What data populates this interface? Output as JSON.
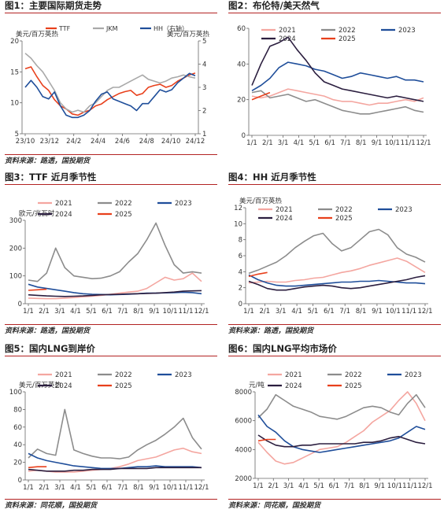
{
  "figures": [
    {
      "title": "图1：主要国际期货走势",
      "source": "资料来源：路透，国投期货",
      "unit_left": "美元/百万英热",
      "unit_right": "美元/百万英热",
      "chart_data": {
        "type": "line",
        "x_ticks": [
          "23/10",
          "23/12",
          "24/2",
          "24/4",
          "24/6",
          "24/8",
          "24/10",
          "24/12"
        ],
        "ylim": [
          5,
          20
        ],
        "y_ticks": [
          5,
          10,
          15,
          20
        ],
        "y2lim": [
          1,
          5
        ],
        "y2_ticks": [
          1,
          2,
          3,
          4,
          5
        ],
        "legend_placement": "top",
        "series": [
          {
            "name": "TTF",
            "color": "#e8401c",
            "axis": "left",
            "values": [
              15.5,
              15.8,
              14.2,
              12.8,
              12.0,
              10.5,
              9.5,
              9.0,
              8.2,
              8.0,
              8.5,
              8.8,
              9.5,
              9.8,
              10.5,
              11.0,
              11.5,
              11.8,
              12.0,
              11.2,
              11.5,
              12.5,
              12.8,
              13.0,
              12.5,
              12.8,
              13.5,
              14.0,
              14.5,
              14.8
            ]
          },
          {
            "name": "JKM",
            "color": "#a9a9a9",
            "axis": "left",
            "values": [
              18.0,
              17.2,
              16.0,
              15.0,
              13.5,
              12.0,
              10.0,
              9.0,
              8.5,
              8.8,
              8.5,
              9.5,
              10.0,
              11.0,
              12.0,
              12.5,
              12.5,
              13.0,
              13.5,
              14.0,
              14.5,
              13.8,
              13.5,
              13.2,
              13.5,
              14.0,
              14.2,
              14.5,
              14.2,
              14.0
            ]
          },
          {
            "name": "HH（右轴）",
            "color": "#1f4e9a",
            "axis": "right",
            "values": [
              3.0,
              3.3,
              3.0,
              2.6,
              2.5,
              2.8,
              2.2,
              1.8,
              1.7,
              1.7,
              1.8,
              2.0,
              2.4,
              2.7,
              2.8,
              2.5,
              2.4,
              2.3,
              2.2,
              2.0,
              2.3,
              2.3,
              2.6,
              2.9,
              2.8,
              2.9,
              3.2,
              3.4,
              3.6,
              3.5
            ]
          }
        ]
      }
    },
    {
      "title": "图2：布伦特/美天然气",
      "source": "",
      "chart_data": {
        "type": "line",
        "x_ticks": [
          "1/1",
          "2/1",
          "3/1",
          "4/1",
          "5/1",
          "6/1",
          "7/1",
          "8/1",
          "9/1",
          "10/1",
          "11/1",
          "12/1"
        ],
        "ylim": [
          0,
          60
        ],
        "y_ticks": [
          0,
          20,
          40,
          60
        ],
        "legend_placement": "top",
        "series": [
          {
            "name": "2021",
            "color": "#f4a6a0",
            "values": [
              22,
              21,
              22,
              24,
              26,
              25,
              24,
              23,
              22,
              20,
              19,
              19,
              18,
              17,
              18,
              18,
              19,
              20,
              19,
              21
            ]
          },
          {
            "name": "2022",
            "color": "#8c8c8c",
            "values": [
              24,
              25,
              21,
              22,
              23,
              21,
              19,
              20,
              18,
              16,
              14,
              13,
              12,
              12,
              13,
              14,
              15,
              16,
              14,
              13
            ]
          },
          {
            "name": "2023",
            "color": "#1f4e9a",
            "values": [
              25,
              28,
              32,
              38,
              41,
              40,
              39,
              37,
              36,
              34,
              32,
              33,
              35,
              34,
              33,
              32,
              33,
              31,
              31,
              30
            ]
          },
          {
            "name": "2024",
            "color": "#2b1e3f",
            "values": [
              28,
              40,
              50,
              52,
              55,
              48,
              42,
              35,
              30,
              28,
              26,
              25,
              24,
              23,
              22,
              21,
              22,
              21,
              20,
              19
            ]
          },
          {
            "name": "2025",
            "color": "#e8401c",
            "values": [
              20,
              22,
              24
            ]
          }
        ]
      }
    },
    {
      "title": "图3：TTF 近月季节性",
      "source": "资料来源：路透，国投期货",
      "unit_left": "欧元/兆瓦时",
      "chart_data": {
        "type": "line",
        "x_ticks": [
          "1/1",
          "2/1",
          "3/1",
          "4/1",
          "5/1",
          "6/1",
          "7/1",
          "8/1",
          "9/1",
          "10/1",
          "11/1",
          "12/1"
        ],
        "ylim": [
          0,
          300
        ],
        "y_ticks": [
          0,
          100,
          200,
          300
        ],
        "legend_placement": "top",
        "series": [
          {
            "name": "2021",
            "color": "#f4a6a0",
            "values": [
              20,
              19,
              18,
              18,
              20,
              22,
              25,
              27,
              30,
              34,
              38,
              42,
              45,
              55,
              75,
              95,
              85,
              90,
              110,
              80
            ]
          },
          {
            "name": "2022",
            "color": "#8c8c8c",
            "values": [
              85,
              80,
              110,
              200,
              130,
              100,
              95,
              90,
              92,
              100,
              115,
              150,
              180,
              230,
              290,
              210,
              140,
              110,
              115,
              110
            ]
          },
          {
            "name": "2023",
            "color": "#1f4e9a",
            "values": [
              70,
              60,
              55,
              50,
              45,
              40,
              36,
              34,
              33,
              32,
              33,
              34,
              36,
              38,
              38,
              39,
              40,
              41,
              40,
              36
            ]
          },
          {
            "name": "2024",
            "color": "#2b1e3f",
            "values": [
              32,
              30,
              28,
              27,
              26,
              27,
              28,
              30,
              32,
              33,
              34,
              35,
              36,
              37,
              38,
              40,
              42,
              45,
              46,
              47
            ]
          },
          {
            "name": "2025",
            "color": "#e8401c",
            "values": [
              48,
              50,
              52
            ]
          }
        ]
      }
    },
    {
      "title": "图4：HH 近月季节性",
      "source": "资料来源：路透，国投期货",
      "unit_left": "美元/百万英热",
      "chart_data": {
        "type": "line",
        "x_ticks": [
          "1/1",
          "2/1",
          "3/1",
          "4/1",
          "5/1",
          "6/1",
          "7/1",
          "8/1",
          "9/1",
          "10/1",
          "11/1",
          "12/1"
        ],
        "ylim": [
          0,
          12
        ],
        "y_ticks": [
          0,
          2,
          4,
          6,
          8,
          10,
          12
        ],
        "legend_placement": "top",
        "series": [
          {
            "name": "2021",
            "color": "#f4a6a0",
            "values": [
              2.6,
              2.7,
              2.8,
              2.7,
              2.7,
              2.9,
              3.0,
              3.2,
              3.3,
              3.6,
              3.9,
              4.1,
              4.4,
              4.8,
              5.1,
              5.4,
              5.7,
              5.3,
              4.6,
              3.9
            ]
          },
          {
            "name": "2022",
            "color": "#8c8c8c",
            "values": [
              3.8,
              4.2,
              4.7,
              5.2,
              6.0,
              7.0,
              7.8,
              8.5,
              8.8,
              7.5,
              6.6,
              7.0,
              8.0,
              9.0,
              9.3,
              8.6,
              7.0,
              6.2,
              5.8,
              5.2
            ]
          },
          {
            "name": "2023",
            "color": "#1f4e9a",
            "values": [
              3.6,
              3.0,
              2.6,
              2.3,
              2.2,
              2.2,
              2.3,
              2.4,
              2.5,
              2.6,
              2.7,
              2.7,
              2.8,
              2.8,
              2.9,
              2.8,
              2.7,
              2.6,
              2.6,
              2.5
            ]
          },
          {
            "name": "2024",
            "color": "#2b1e3f",
            "values": [
              2.8,
              2.4,
              1.9,
              1.7,
              1.7,
              1.9,
              2.1,
              2.2,
              2.3,
              2.2,
              2.0,
              1.9,
              2.0,
              2.2,
              2.4,
              2.6,
              2.8,
              3.0,
              3.3,
              3.5
            ]
          },
          {
            "name": "2025",
            "color": "#e8401c",
            "values": [
              3.4,
              3.7,
              3.9
            ]
          }
        ]
      }
    },
    {
      "title": "图5：国内LNG到岸价",
      "source": "资料来源：同花顺，国投期货",
      "unit_left": "美元/百万英热",
      "chart_data": {
        "type": "line",
        "x_ticks": [
          "1/1",
          "2/1",
          "3/1",
          "4/1",
          "5/1",
          "6/1",
          "7/1",
          "8/1",
          "9/1",
          "10/1",
          "11/1",
          "12/1"
        ],
        "ylim": [
          0,
          100
        ],
        "y_ticks": [
          0,
          20,
          40,
          60,
          80,
          100
        ],
        "legend_placement": "top",
        "series": [
          {
            "name": "2021",
            "color": "#f4a6a0",
            "values": [
              10,
              11,
              10,
              9,
              9,
              9,
              10,
              11,
              12,
              13,
              15,
              18,
              22,
              24,
              26,
              30,
              34,
              36,
              32,
              30
            ]
          },
          {
            "name": "2022",
            "color": "#8c8c8c",
            "values": [
              25,
              35,
              30,
              28,
              80,
              34,
              30,
              27,
              25,
              25,
              24,
              26,
              34,
              40,
              45,
              52,
              60,
              70,
              48,
              35
            ]
          },
          {
            "name": "2023",
            "color": "#1f4e9a",
            "values": [
              30,
              25,
              22,
              20,
              18,
              16,
              15,
              14,
              13,
              13,
              13,
              14,
              15,
              15,
              16,
              15,
              15,
              15,
              15,
              14
            ]
          },
          {
            "name": "2024",
            "color": "#2b1e3f",
            "values": [
              12,
              11,
              10,
              10,
              10,
              11,
              11,
              12,
              12,
              12,
              13,
              13,
              13,
              13,
              14,
              14,
              14,
              14,
              14,
              14
            ]
          },
          {
            "name": "2025",
            "color": "#e8401c",
            "values": [
              14,
              15,
              15
            ]
          }
        ]
      }
    },
    {
      "title": "图6：国内LNG平均市场价",
      "source": "资料来源：同花顺，国投期货",
      "unit_left": "元/吨",
      "chart_data": {
        "type": "line",
        "x_ticks": [
          "1/1",
          "2/1",
          "3/1",
          "4/1",
          "5/1",
          "6/1",
          "7/1",
          "8/1",
          "9/1",
          "10/1",
          "11/1",
          "12/1"
        ],
        "ylim": [
          2000,
          8000
        ],
        "y_ticks": [
          2000,
          4000,
          6000,
          8000
        ],
        "legend_placement": "top",
        "series": [
          {
            "name": "2021",
            "color": "#f4a6a0",
            "values": [
              4500,
              3800,
              3200,
              3000,
              3100,
              3400,
              3700,
              4000,
              4100,
              4200,
              4500,
              4900,
              5300,
              5900,
              6300,
              6700,
              7400,
              8000,
              7200,
              6000
            ]
          },
          {
            "name": "2022",
            "color": "#8c8c8c",
            "values": [
              6200,
              6800,
              7800,
              7400,
              7000,
              6800,
              6600,
              6300,
              6200,
              6100,
              6300,
              6600,
              6900,
              7000,
              6900,
              6600,
              6400,
              7200,
              7800,
              6900
            ]
          },
          {
            "name": "2023",
            "color": "#1f4e9a",
            "values": [
              6400,
              5600,
              5200,
              4600,
              4200,
              4000,
              3900,
              3800,
              3900,
              4000,
              4100,
              4200,
              4300,
              4400,
              4500,
              4600,
              4800,
              5200,
              5600,
              5400
            ]
          },
          {
            "name": "2024",
            "color": "#2b1e3f",
            "values": [
              5000,
              4600,
              4300,
              4200,
              4200,
              4300,
              4300,
              4400,
              4400,
              4400,
              4400,
              4400,
              4500,
              4500,
              4600,
              4800,
              4900,
              4700,
              4500,
              4400
            ]
          },
          {
            "name": "2025",
            "color": "#e8401c",
            "values": [
              4600,
              4700,
              4700
            ]
          }
        ]
      }
    }
  ]
}
